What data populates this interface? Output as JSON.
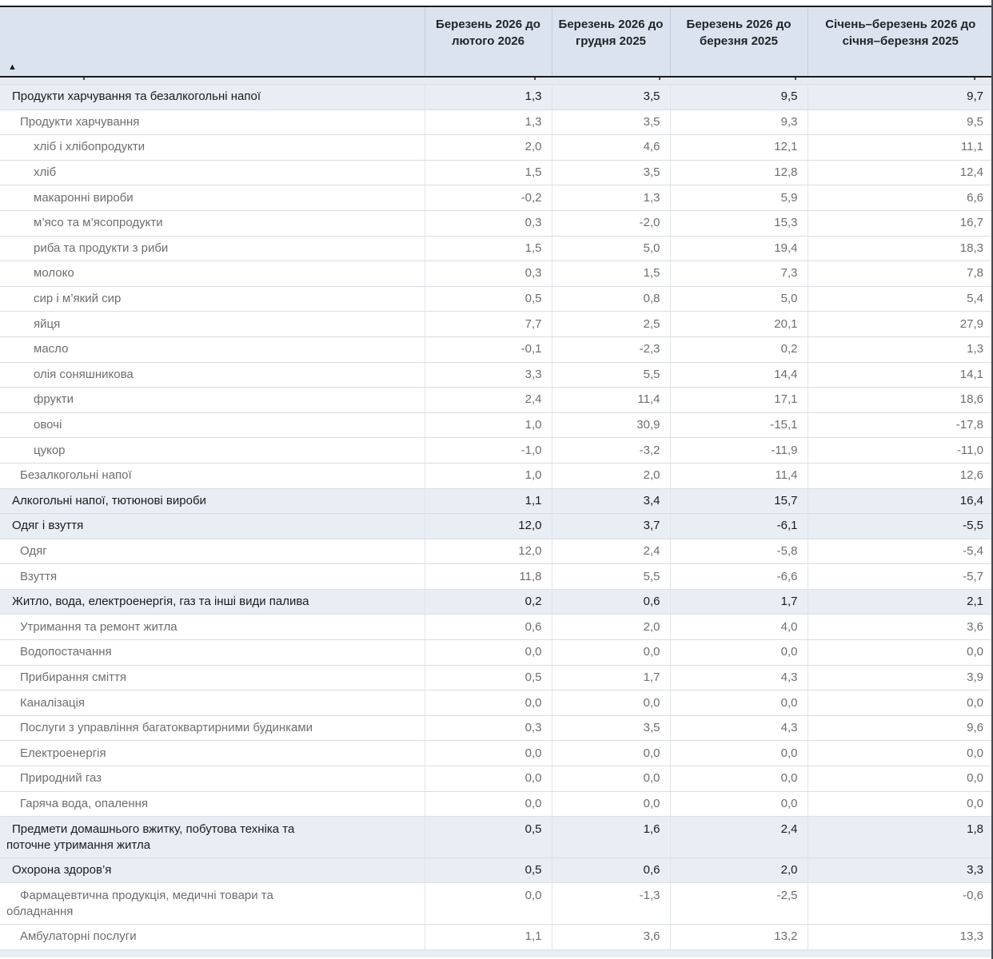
{
  "table": {
    "sort_indicator": "▲",
    "header": {
      "row_label_column": "",
      "columns": [
        "Березень 2026 до лютого 2026",
        "Березень 2026 до грудня 2025",
        "Березень 2026 до березня 2025",
        "Січень–березень 2026 до січня–березня 2025"
      ]
    },
    "rows": [
      {
        "label": "Продукти харчування та безалкогольні напої",
        "level": 1,
        "category": true,
        "values": [
          "1,3",
          "3,5",
          "9,5",
          "9,7"
        ]
      },
      {
        "label": "Продукти харчування",
        "level": 2,
        "category": false,
        "values": [
          "1,3",
          "3,5",
          "9,3",
          "9,5"
        ]
      },
      {
        "label": "хліб і хлібопродукти",
        "level": 3,
        "category": false,
        "values": [
          "2,0",
          "4,6",
          "12,1",
          "11,1"
        ]
      },
      {
        "label": "хліб",
        "level": 3,
        "category": false,
        "values": [
          "1,5",
          "3,5",
          "12,8",
          "12,4"
        ]
      },
      {
        "label": "макаронні вироби",
        "level": 3,
        "category": false,
        "values": [
          "-0,2",
          "1,3",
          "5,9",
          "6,6"
        ]
      },
      {
        "label": "м’ясо та м’ясопродукти",
        "level": 3,
        "category": false,
        "values": [
          "0,3",
          "-2,0",
          "15,3",
          "16,7"
        ]
      },
      {
        "label": "риба та продукти з риби",
        "level": 3,
        "category": false,
        "values": [
          "1,5",
          "5,0",
          "19,4",
          "18,3"
        ]
      },
      {
        "label": "молоко",
        "level": 3,
        "category": false,
        "values": [
          "0,3",
          "1,5",
          "7,3",
          "7,8"
        ]
      },
      {
        "label": "сир і м’який сир",
        "level": 3,
        "category": false,
        "values": [
          "0,5",
          "0,8",
          "5,0",
          "5,4"
        ]
      },
      {
        "label": "яйця",
        "level": 3,
        "category": false,
        "values": [
          "7,7",
          "2,5",
          "20,1",
          "27,9"
        ]
      },
      {
        "label": "масло",
        "level": 3,
        "category": false,
        "values": [
          "-0,1",
          "-2,3",
          "0,2",
          "1,3"
        ]
      },
      {
        "label": "олія соняшникова",
        "level": 3,
        "category": false,
        "values": [
          "3,3",
          "5,5",
          "14,4",
          "14,1"
        ]
      },
      {
        "label": "фрукти",
        "level": 3,
        "category": false,
        "values": [
          "2,4",
          "11,4",
          "17,1",
          "18,6"
        ]
      },
      {
        "label": "овочі",
        "level": 3,
        "category": false,
        "values": [
          "1,0",
          "30,9",
          "-15,1",
          "-17,8"
        ]
      },
      {
        "label": "цукор",
        "level": 3,
        "category": false,
        "values": [
          "-1,0",
          "-3,2",
          "-11,9",
          "-11,0"
        ]
      },
      {
        "label": "Безалкогольні напої",
        "level": 2,
        "category": false,
        "values": [
          "1,0",
          "2,0",
          "11,4",
          "12,6"
        ]
      },
      {
        "label": "Алкогольні напої, тютюнові вироби",
        "level": 1,
        "category": true,
        "values": [
          "1,1",
          "3,4",
          "15,7",
          "16,4"
        ]
      },
      {
        "label": "Одяг і взуття",
        "level": 1,
        "category": true,
        "values": [
          "12,0",
          "3,7",
          "-6,1",
          "-5,5"
        ]
      },
      {
        "label": "Одяг",
        "level": 2,
        "category": false,
        "values": [
          "12,0",
          "2,4",
          "-5,8",
          "-5,4"
        ]
      },
      {
        "label": "Взуття",
        "level": 2,
        "category": false,
        "values": [
          "11,8",
          "5,5",
          "-6,6",
          "-5,7"
        ]
      },
      {
        "label": "Житло, вода, електроенергія, газ та інші види палива",
        "level": 1,
        "category": true,
        "values": [
          "0,2",
          "0,6",
          "1,7",
          "2,1"
        ]
      },
      {
        "label": "Утримання та ремонт житла",
        "level": 2,
        "category": false,
        "values": [
          "0,6",
          "2,0",
          "4,0",
          "3,6"
        ]
      },
      {
        "label": "Водопостачання",
        "level": 2,
        "category": false,
        "values": [
          "0,0",
          "0,0",
          "0,0",
          "0,0"
        ]
      },
      {
        "label": "Прибирання сміття",
        "level": 2,
        "category": false,
        "values": [
          "0,5",
          "1,7",
          "4,3",
          "3,9"
        ]
      },
      {
        "label": "Каналізація",
        "level": 2,
        "category": false,
        "values": [
          "0,0",
          "0,0",
          "0,0",
          "0,0"
        ]
      },
      {
        "label": "Послуги з управління багатоквартирними будинками",
        "level": 2,
        "category": false,
        "values": [
          "0,3",
          "3,5",
          "4,3",
          "9,6"
        ]
      },
      {
        "label": "Електроенергія",
        "level": 2,
        "category": false,
        "values": [
          "0,0",
          "0,0",
          "0,0",
          "0,0"
        ]
      },
      {
        "label": "Природний газ",
        "level": 2,
        "category": false,
        "values": [
          "0,0",
          "0,0",
          "0,0",
          "0,0"
        ]
      },
      {
        "label": "Гаряча вода, опалення",
        "level": 2,
        "category": false,
        "values": [
          "0,0",
          "0,0",
          "0,0",
          "0,0"
        ]
      },
      {
        "label": "Предмети домашнього вжитку, побутова техніка та\nпоточне утримання житла",
        "level": 1,
        "category": true,
        "values": [
          "0,5",
          "1,6",
          "2,4",
          "1,8"
        ]
      },
      {
        "label": "Охорона здоров’я",
        "level": 1,
        "category": true,
        "values": [
          "0,5",
          "0,6",
          "2,0",
          "3,3"
        ]
      },
      {
        "label": "Фармацевтична продукція, медичні товари та\nобладнання",
        "level": 2,
        "category": false,
        "values": [
          "0,0",
          "-1,3",
          "-2,5",
          "-0,6"
        ]
      },
      {
        "label": "Амбулаторні послуги",
        "level": 2,
        "category": false,
        "values": [
          "1,1",
          "3,6",
          "13,2",
          "13,3"
        ]
      }
    ]
  }
}
